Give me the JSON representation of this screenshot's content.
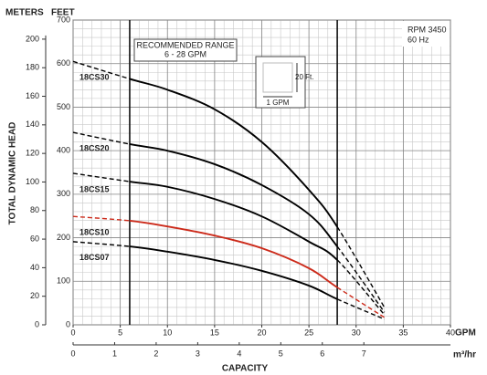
{
  "chart_data": {
    "type": "line",
    "y_axis_label": "TOTAL DYNAMIC HEAD",
    "y_unit_label": "FEET",
    "y2_unit_label": "METERS",
    "x_axis_label": "CAPACITY",
    "x_unit_label": "GPM",
    "x2_unit_label": "m³/hr",
    "range_title": "RECOMMENDED RANGE",
    "range_text": "6 - 28 GPM",
    "range": [
      6,
      28
    ],
    "speed_label": "RPM 3450",
    "frequency_label": "60 Hz",
    "scale_key": {
      "height_label": "20 Ft.",
      "width_label": "1 GPM"
    },
    "x": [
      0,
      6,
      10,
      15,
      20,
      25,
      28,
      33
    ],
    "series": [
      {
        "name": "18CS30",
        "color": "#000000",
        "values": [
          605,
          565,
          540,
          495,
          420,
          310,
          225,
          40
        ]
      },
      {
        "name": "18CS20",
        "color": "#000000",
        "values": [
          442,
          415,
          400,
          369,
          321,
          254,
          180,
          29
        ]
      },
      {
        "name": "18CS15",
        "color": "#000000",
        "values": [
          348,
          329,
          317,
          289,
          249,
          191,
          149,
          23
        ]
      },
      {
        "name": "18CS10",
        "color": "#cc2a1a",
        "values": [
          249,
          239,
          226,
          205,
          176,
          130,
          86,
          17
        ]
      },
      {
        "name": "18CS07",
        "color": "#000000",
        "values": [
          191,
          180,
          168,
          149,
          124,
          90,
          59,
          13
        ]
      }
    ],
    "xlim": [
      0,
      40
    ],
    "xticks": [
      0,
      5,
      10,
      15,
      20,
      25,
      30,
      35,
      40
    ],
    "x2lim": [
      0,
      9.085
    ],
    "x2ticks": [
      0,
      1,
      2,
      3,
      4,
      5,
      6,
      7
    ],
    "ylim": [
      0,
      700
    ],
    "yticks": [
      0,
      100,
      200,
      300,
      400,
      500,
      600,
      700
    ],
    "y2lim": [
      0,
      213.36
    ],
    "y2ticks": [
      0,
      20,
      40,
      60,
      80,
      100,
      120,
      140,
      160,
      180,
      200
    ],
    "grid": true,
    "minor_grid": {
      "x": 1,
      "y": 20
    }
  }
}
